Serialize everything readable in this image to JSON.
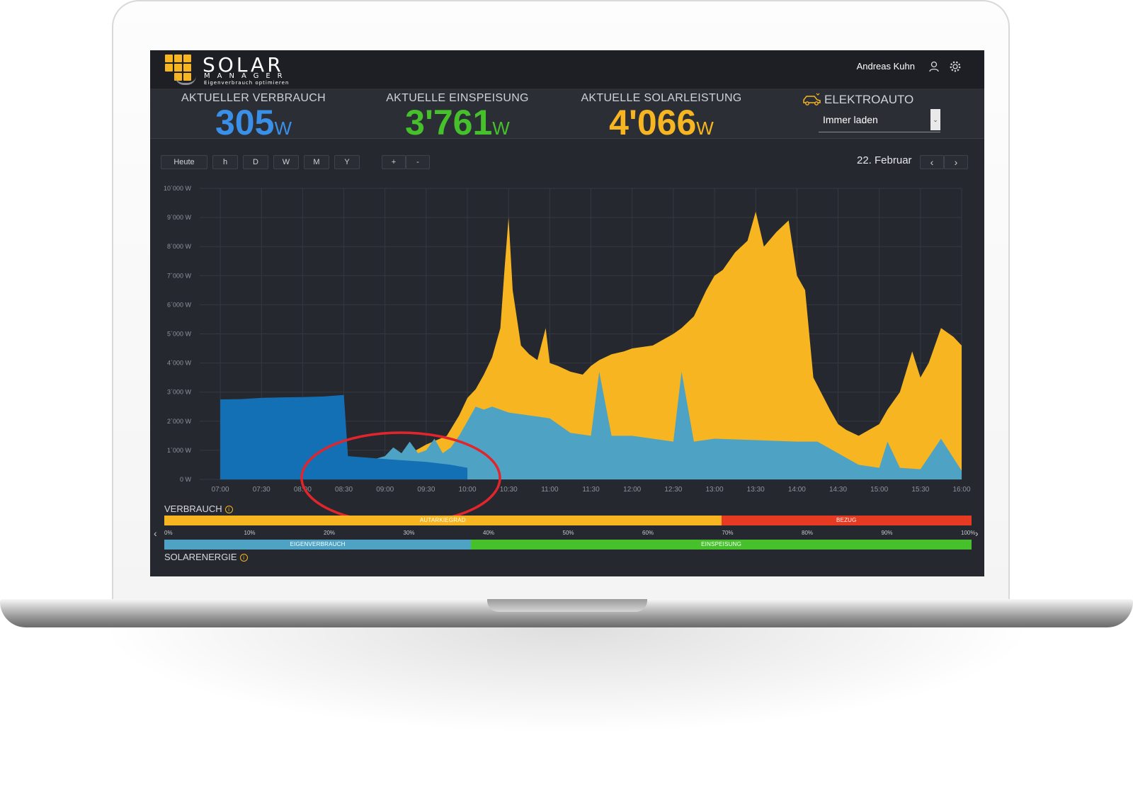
{
  "header": {
    "logo_title": "SOLAR",
    "logo_subtitle": "MANAGER",
    "logo_tagline": "Eigenverbrauch optimieren",
    "user_name": "Andreas Kuhn"
  },
  "metrics": [
    {
      "label": "AKTUELLER VERBRAUCH",
      "value": "305",
      "unit": "W",
      "color": "#3a8fe8"
    },
    {
      "label": "AKTUELLE EINSPEISUNG",
      "value": "3'761",
      "unit": "W",
      "color": "#46c02b"
    },
    {
      "label": "AKTUELLE SOLARLEISTUNG",
      "value": "4'066",
      "unit": "W",
      "color": "#f6b521"
    }
  ],
  "ev": {
    "label": "ELEKTROAUTO",
    "mode": "Immer laden"
  },
  "toolbar": {
    "buttons": [
      "Heute",
      "h",
      "D",
      "W",
      "M",
      "Y"
    ],
    "zoom_in": "+",
    "zoom_out": "-",
    "date": "22. Februar",
    "prev": "‹",
    "next": "›"
  },
  "chart_data": {
    "type": "area",
    "title": "",
    "xlabel": "",
    "ylabel": "",
    "ylim": [
      0,
      10000
    ],
    "y_ticks": [
      "10`000 W",
      "9`000 W",
      "8`000 W",
      "7`000 W",
      "6`000 W",
      "5`000 W",
      "4`000 W",
      "3`000 W",
      "2`000 W",
      "1`000 W",
      "0 W"
    ],
    "x_ticks": [
      "07:00",
      "07:30",
      "08:00",
      "08:30",
      "09:00",
      "09:30",
      "10:00",
      "10:30",
      "11:00",
      "11:30",
      "12:00",
      "12:30",
      "13:00",
      "13:30",
      "14:00",
      "14:30",
      "15:00",
      "15:30",
      "16:00"
    ],
    "x_range_hours": [
      6.75,
      16.0
    ],
    "grid": true,
    "series": [
      {
        "color": "#f6b521",
        "x": [
          9.0,
          9.25,
          9.5,
          9.75,
          9.9,
          10.0,
          10.1,
          10.2,
          10.3,
          10.4,
          10.45,
          10.5,
          10.55,
          10.65,
          10.75,
          10.85,
          10.95,
          11.0,
          11.1,
          11.25,
          11.4,
          11.5,
          11.6,
          11.75,
          11.9,
          12.0,
          12.25,
          12.5,
          12.6,
          12.75,
          12.9,
          13.0,
          13.1,
          13.25,
          13.4,
          13.5,
          13.6,
          13.75,
          13.9,
          14.0,
          14.1,
          14.2,
          14.4,
          14.5,
          14.6,
          14.75,
          15.0,
          15.1,
          15.25,
          15.4,
          15.5,
          15.6,
          15.75,
          15.9,
          16.0
        ],
        "y": [
          700,
          800,
          1200,
          1500,
          2200,
          2800,
          3100,
          3600,
          4200,
          5200,
          7200,
          9000,
          6500,
          4600,
          4300,
          4100,
          5200,
          4000,
          3900,
          3700,
          3600,
          3900,
          4100,
          4300,
          4400,
          4500,
          4600,
          5000,
          5200,
          5600,
          6500,
          7000,
          7200,
          7800,
          8200,
          9200,
          8000,
          8500,
          8900,
          7000,
          6500,
          3500,
          2400,
          1900,
          1700,
          1500,
          1900,
          2400,
          3000,
          4400,
          3500,
          4000,
          5200,
          4900,
          4600
        ]
      },
      {
        "color": "#4ea3c4",
        "x": [
          7.0,
          7.5,
          8.0,
          8.25,
          8.5,
          8.75,
          9.0,
          9.1,
          9.2,
          9.3,
          9.4,
          9.5,
          9.6,
          9.7,
          9.8,
          9.9,
          10.0,
          10.1,
          10.2,
          10.3,
          10.5,
          10.75,
          11.0,
          11.25,
          11.5,
          11.6,
          11.75,
          12.0,
          12.25,
          12.5,
          12.6,
          12.75,
          13.0,
          13.5,
          14.0,
          14.25,
          14.5,
          14.75,
          15.0,
          15.1,
          15.25,
          15.5,
          15.75,
          16.0
        ],
        "y": [
          0,
          0,
          200,
          350,
          500,
          600,
          800,
          1100,
          900,
          1300,
          900,
          1000,
          1400,
          900,
          1100,
          1500,
          2000,
          2500,
          2400,
          2500,
          2300,
          2200,
          2100,
          1600,
          1500,
          3700,
          1500,
          1500,
          1400,
          1300,
          3700,
          1300,
          1400,
          1350,
          1300,
          1300,
          900,
          500,
          400,
          1300,
          400,
          350,
          1400,
          300
        ]
      },
      {
        "color": "#1470b5",
        "x": [
          7.0,
          7.25,
          7.5,
          7.75,
          8.0,
          8.25,
          8.5,
          8.55,
          9.0,
          9.5,
          9.8,
          10.0
        ],
        "y": [
          2750,
          2760,
          2800,
          2820,
          2830,
          2850,
          2900,
          800,
          700,
          600,
          500,
          400
        ]
      }
    ]
  },
  "verbrauch_bar": {
    "label": "VERBRAUCH",
    "segments": [
      {
        "label": "AUTARKIEGRAD",
        "percent": 69,
        "color": "#f6b521"
      },
      {
        "label": "BEZUG",
        "percent": 31,
        "color": "#e63a22"
      }
    ]
  },
  "solar_bar": {
    "label": "SOLARENERGIE",
    "segments": [
      {
        "label": "EIGENVERBRAUCH",
        "percent": 38,
        "color": "#4ea3c4"
      },
      {
        "label": "EINSPEISUNG",
        "percent": 62,
        "color": "#46c02b"
      }
    ]
  },
  "scale_ticks": [
    "0%",
    "10%",
    "20%",
    "30%",
    "40%",
    "50%",
    "60%",
    "70%",
    "80%",
    "90%",
    "100%"
  ]
}
